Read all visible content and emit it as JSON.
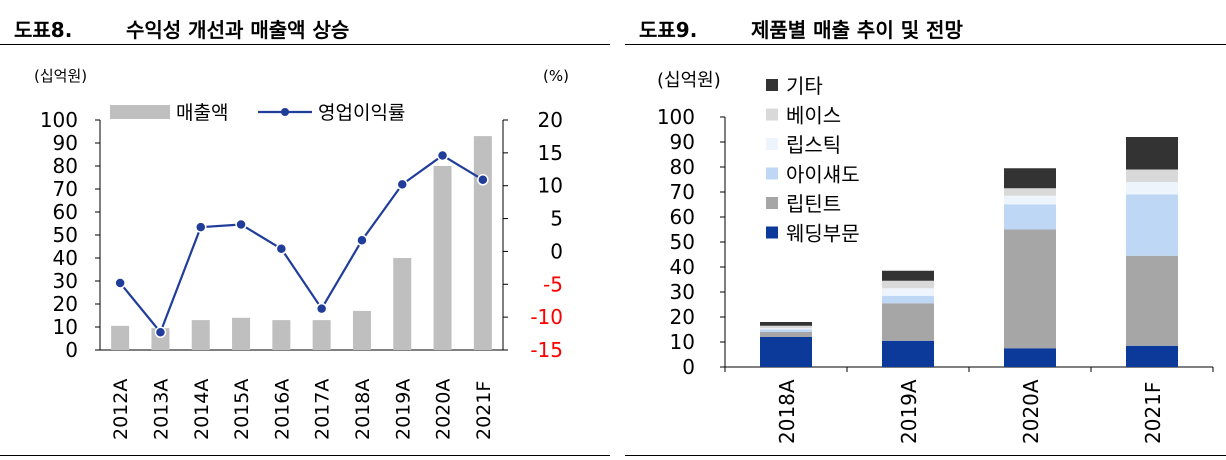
{
  "figure8": {
    "number": "도표8.",
    "title": "수익성 개선과 매출액 상승",
    "unit_left": "(십억원)",
    "unit_right": "(%)",
    "chart_data": {
      "type": "bar+line",
      "categories": [
        "2012A",
        "2013A",
        "2014A",
        "2015A",
        "2016A",
        "2017A",
        "2018A",
        "2019A",
        "2020A",
        "2021F"
      ],
      "series": [
        {
          "name": "매출액",
          "type": "bar",
          "axis": "left",
          "color": "#bfbfbf",
          "values": [
            10.5,
            9.5,
            13,
            14,
            13,
            13,
            17,
            40,
            80,
            93
          ]
        },
        {
          "name": "영업이익률",
          "type": "line",
          "axis": "right",
          "color": "#1f3d99",
          "values": [
            -4.8,
            -12.3,
            3.7,
            4.1,
            0.4,
            -8.7,
            1.7,
            10.2,
            14.6,
            10.9
          ]
        }
      ],
      "ylim_left": [
        0,
        100
      ],
      "yticks_left": [
        "0",
        "10",
        "20",
        "30",
        "40",
        "50",
        "60",
        "70",
        "80",
        "90",
        "100"
      ],
      "ylim_right": [
        -15,
        20
      ],
      "yticks_right": [
        "-15",
        "-10",
        "-5",
        "0",
        "5",
        "10",
        "15",
        "20"
      ],
      "negative_tick_color": "#ff0000",
      "legend": "top-left"
    }
  },
  "figure9": {
    "number": "도표9.",
    "title": "제품별 매출 추이 및 전망",
    "unit_left": "(십억원)",
    "chart_data": {
      "type": "bar",
      "stacked": true,
      "categories": [
        "2018A",
        "2019A",
        "2020A",
        "2021F"
      ],
      "series": [
        {
          "name": "웨딩부문",
          "color": "#0b3a9a",
          "values": [
            12,
            10.5,
            7.5,
            8.5
          ]
        },
        {
          "name": "립틴트",
          "color": "#a6a6a6",
          "values": [
            2,
            15,
            47.5,
            36
          ]
        },
        {
          "name": "아이섀도",
          "color": "#bdd7f5",
          "values": [
            1,
            3,
            10,
            24.5
          ]
        },
        {
          "name": "립스틱",
          "color": "#eef4fb",
          "values": [
            0.5,
            3,
            3.5,
            5
          ]
        },
        {
          "name": "베이스",
          "color": "#d9d9d9",
          "values": [
            1,
            3,
            3,
            5
          ]
        },
        {
          "name": "기타",
          "color": "#333333",
          "values": [
            1.5,
            4,
            8,
            13
          ]
        }
      ],
      "ylim": [
        0,
        100
      ],
      "yticks": [
        "0",
        "10",
        "20",
        "30",
        "40",
        "50",
        "60",
        "70",
        "80",
        "90",
        "100"
      ],
      "legend": "top-left"
    }
  }
}
